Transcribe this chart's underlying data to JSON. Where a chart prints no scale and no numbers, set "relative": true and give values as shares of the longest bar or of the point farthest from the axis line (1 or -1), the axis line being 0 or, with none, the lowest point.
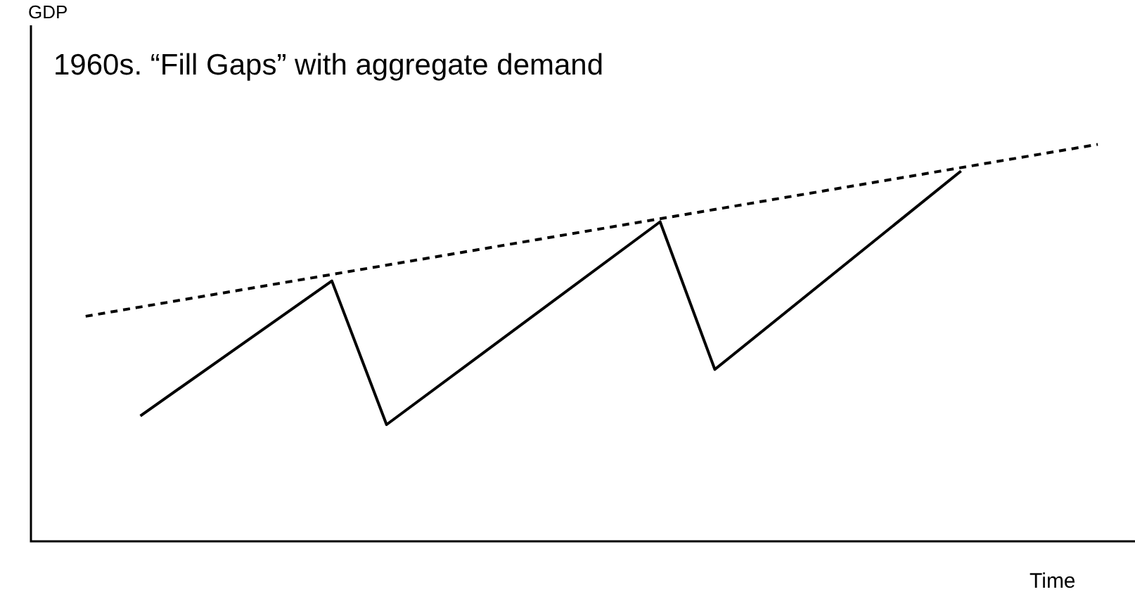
{
  "chart_data": {
    "type": "line",
    "title": "1960s. “Fill Gaps” with aggregate demand",
    "xlabel": "Time",
    "annotations": [
      "GDP"
    ],
    "relative": true,
    "legend": false,
    "marker": "none",
    "categories": [
      null,
      null,
      null,
      null,
      null,
      null,
      null,
      null,
      null,
      null,
      null,
      null,
      null,
      null,
      null,
      null,
      null,
      null,
      null,
      null,
      null,
      null,
      null,
      null,
      null,
      null,
      null,
      null,
      null,
      null,
      null,
      null,
      null,
      null,
      null,
      null,
      null,
      null,
      null,
      null,
      null
    ],
    "series": [
      {
        "color": "#000000",
        "line_style": "solid",
        "values": [
          null,
          null,
          null,
          null,
          0.316,
          null,
          null,
          null,
          null,
          null,
          null,
          0.656,
          null,
          0.294,
          null,
          null,
          null,
          null,
          null,
          null,
          null,
          null,
          null,
          0.805,
          null,
          0.433,
          null,
          null,
          null,
          null,
          null,
          null,
          null,
          null,
          0.933,
          null,
          null,
          null,
          null,
          null,
          null
        ]
      },
      {
        "color": "#000000",
        "line_style": "dashed",
        "values": [
          null,
          null,
          0.567,
          null,
          null,
          null,
          null,
          null,
          null,
          null,
          null,
          null,
          null,
          null,
          null,
          null,
          null,
          null,
          null,
          null,
          null,
          null,
          null,
          null,
          null,
          null,
          null,
          null,
          null,
          null,
          null,
          null,
          null,
          null,
          null,
          null,
          null,
          null,
          null,
          1.0,
          null
        ]
      }
    ]
  }
}
